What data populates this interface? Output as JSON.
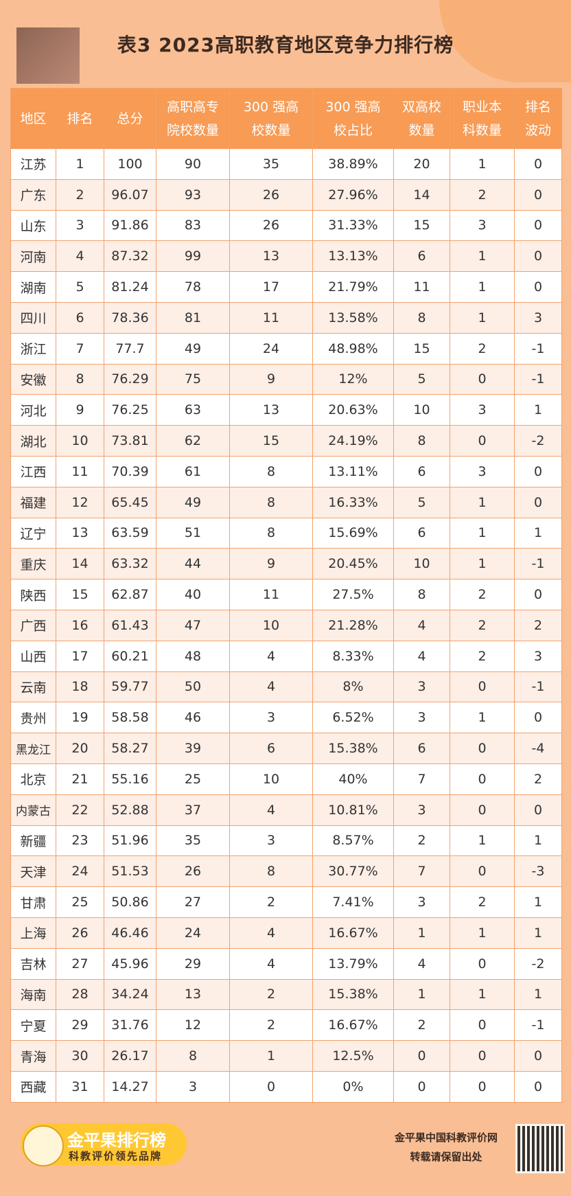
{
  "title": "表3  2023高职教育地区竞争力排行榜",
  "table": {
    "header": [
      [
        "地区"
      ],
      [
        "排名"
      ],
      [
        "总分"
      ],
      [
        "高职高专",
        "院校数量"
      ],
      [
        "300 强高",
        "校数量"
      ],
      [
        "300 强高",
        "校占比"
      ],
      [
        "双高校",
        "数量"
      ],
      [
        "职业本",
        "科数量"
      ],
      [
        "排名",
        "波动"
      ]
    ],
    "rows": [
      [
        "江苏",
        "1",
        "100",
        "90",
        "35",
        "38.89%",
        "20",
        "1",
        "0"
      ],
      [
        "广东",
        "2",
        "96.07",
        "93",
        "26",
        "27.96%",
        "14",
        "2",
        "0"
      ],
      [
        "山东",
        "3",
        "91.86",
        "83",
        "26",
        "31.33%",
        "15",
        "3",
        "0"
      ],
      [
        "河南",
        "4",
        "87.32",
        "99",
        "13",
        "13.13%",
        "6",
        "1",
        "0"
      ],
      [
        "湖南",
        "5",
        "81.24",
        "78",
        "17",
        "21.79%",
        "11",
        "1",
        "0"
      ],
      [
        "四川",
        "6",
        "78.36",
        "81",
        "11",
        "13.58%",
        "8",
        "1",
        "3"
      ],
      [
        "浙江",
        "7",
        "77.7",
        "49",
        "24",
        "48.98%",
        "15",
        "2",
        "-1"
      ],
      [
        "安徽",
        "8",
        "76.29",
        "75",
        "9",
        "12%",
        "5",
        "0",
        "-1"
      ],
      [
        "河北",
        "9",
        "76.25",
        "63",
        "13",
        "20.63%",
        "10",
        "3",
        "1"
      ],
      [
        "湖北",
        "10",
        "73.81",
        "62",
        "15",
        "24.19%",
        "8",
        "0",
        "-2"
      ],
      [
        "江西",
        "11",
        "70.39",
        "61",
        "8",
        "13.11%",
        "6",
        "3",
        "0"
      ],
      [
        "福建",
        "12",
        "65.45",
        "49",
        "8",
        "16.33%",
        "5",
        "1",
        "0"
      ],
      [
        "辽宁",
        "13",
        "63.59",
        "51",
        "8",
        "15.69%",
        "6",
        "1",
        "1"
      ],
      [
        "重庆",
        "14",
        "63.32",
        "44",
        "9",
        "20.45%",
        "10",
        "1",
        "-1"
      ],
      [
        "陕西",
        "15",
        "62.87",
        "40",
        "11",
        "27.5%",
        "8",
        "2",
        "0"
      ],
      [
        "广西",
        "16",
        "61.43",
        "47",
        "10",
        "21.28%",
        "4",
        "2",
        "2"
      ],
      [
        "山西",
        "17",
        "60.21",
        "48",
        "4",
        "8.33%",
        "4",
        "2",
        "3"
      ],
      [
        "云南",
        "18",
        "59.77",
        "50",
        "4",
        "8%",
        "3",
        "0",
        "-1"
      ],
      [
        "贵州",
        "19",
        "58.58",
        "46",
        "3",
        "6.52%",
        "3",
        "1",
        "0"
      ],
      [
        "黑龙江",
        "20",
        "58.27",
        "39",
        "6",
        "15.38%",
        "6",
        "0",
        "-4"
      ],
      [
        "北京",
        "21",
        "55.16",
        "25",
        "10",
        "40%",
        "7",
        "0",
        "2"
      ],
      [
        "内蒙古",
        "22",
        "52.88",
        "37",
        "4",
        "10.81%",
        "3",
        "0",
        "0"
      ],
      [
        "新疆",
        "23",
        "51.96",
        "35",
        "3",
        "8.57%",
        "2",
        "1",
        "1"
      ],
      [
        "天津",
        "24",
        "51.53",
        "26",
        "8",
        "30.77%",
        "7",
        "0",
        "-3"
      ],
      [
        "甘肃",
        "25",
        "50.86",
        "27",
        "2",
        "7.41%",
        "3",
        "2",
        "1"
      ],
      [
        "上海",
        "26",
        "46.46",
        "24",
        "4",
        "16.67%",
        "1",
        "1",
        "1"
      ],
      [
        "吉林",
        "27",
        "45.96",
        "29",
        "4",
        "13.79%",
        "4",
        "0",
        "-2"
      ],
      [
        "海南",
        "28",
        "34.24",
        "13",
        "2",
        "15.38%",
        "1",
        "1",
        "1"
      ],
      [
        "宁夏",
        "29",
        "31.76",
        "12",
        "2",
        "16.67%",
        "2",
        "0",
        "-1"
      ],
      [
        "青海",
        "30",
        "26.17",
        "8",
        "1",
        "12.5%",
        "0",
        "0",
        "0"
      ],
      [
        "西藏",
        "31",
        "14.27",
        "3",
        "0",
        "0%",
        "0",
        "0",
        "0"
      ]
    ]
  },
  "footer": {
    "brand": "金平果排行榜",
    "slogan": "科教评价领先品牌",
    "site": "金平果中国科教评价网",
    "notice": "转载请保留出处"
  }
}
